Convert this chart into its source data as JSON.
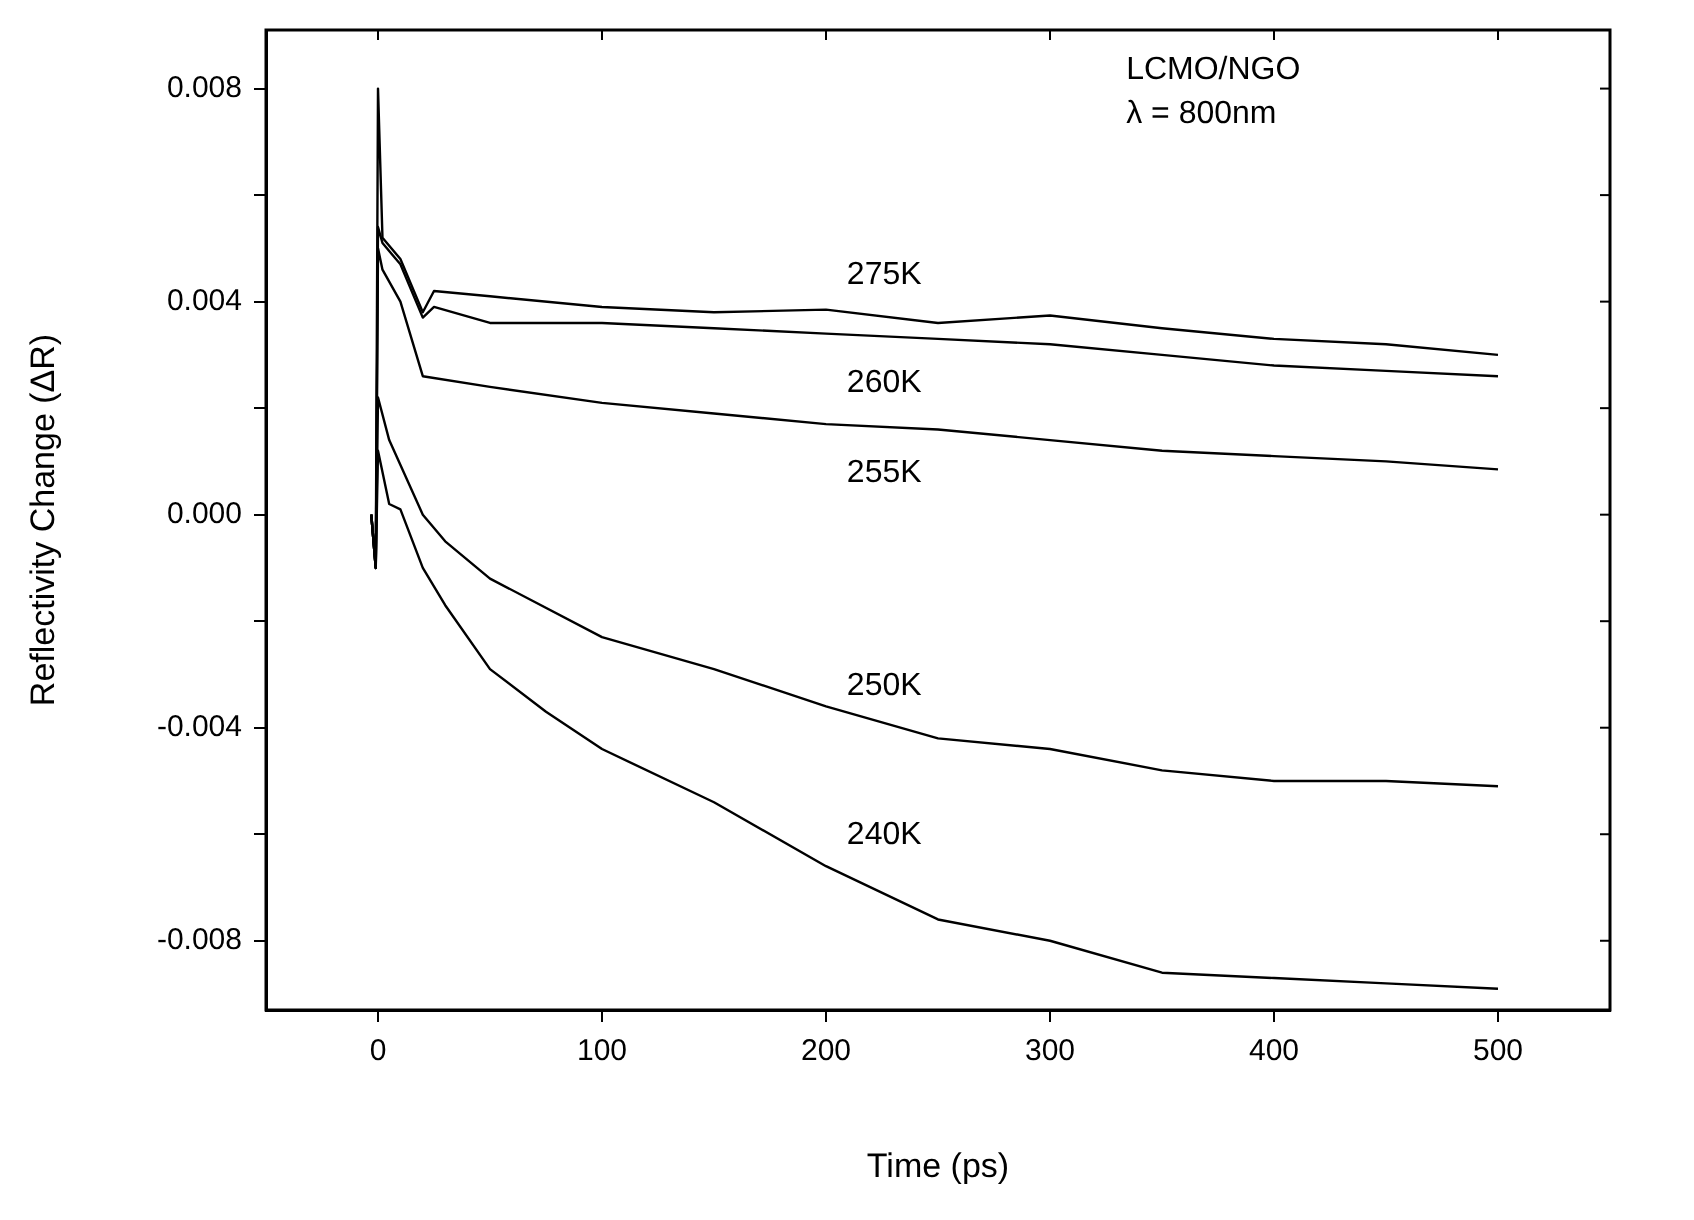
{
  "chart_data": {
    "type": "line",
    "xlabel": "Time (ps)",
    "ylabel": "Reflectivity Change (ΔR)",
    "annotations": [
      "LCMO/NGO",
      "λ = 800nm"
    ],
    "xlim": [
      -50,
      550
    ],
    "xticks": [
      0,
      100,
      200,
      300,
      400,
      500
    ],
    "ylim": [
      -0.0093,
      0.0091
    ],
    "yticks": [
      {
        "value": -0.008,
        "label": "-0.008"
      },
      {
        "value": -0.006,
        "label": null
      },
      {
        "value": -0.004,
        "label": "-0.004"
      },
      {
        "value": -0.002,
        "label": null
      },
      {
        "value": 0,
        "label": "0.000"
      },
      {
        "value": 0.002,
        "label": null
      },
      {
        "value": 0.004,
        "label": "0.004"
      },
      {
        "value": 0.006,
        "label": null
      },
      {
        "value": 0.008,
        "label": "0.008"
      }
    ],
    "grid": false,
    "legend": false,
    "marker": "none",
    "line_style": "solid",
    "series": [
      {
        "name": "275K",
        "color": "#000000",
        "x": [
          -3,
          -1,
          0,
          2,
          10,
          20,
          25,
          50,
          100,
          150,
          200,
          250,
          300,
          350,
          400,
          450,
          500
        ],
        "values": [
          0,
          -0.001,
          0.008,
          0.0052,
          0.0048,
          0.0038,
          0.0042,
          0.0041,
          0.0039,
          0.0038,
          0.00385,
          0.0036,
          0.00374,
          0.0035,
          0.0033,
          0.0032,
          0.003
        ]
      },
      {
        "name": "260K",
        "color": "#000000",
        "x": [
          -3,
          -1,
          0,
          2,
          10,
          20,
          25,
          50,
          100,
          150,
          200,
          250,
          300,
          350,
          400,
          450,
          500
        ],
        "values": [
          0,
          -0.001,
          0.0054,
          0.0051,
          0.0047,
          0.0037,
          0.0039,
          0.0036,
          0.0036,
          0.0035,
          0.0034,
          0.0033,
          0.0032,
          0.003,
          0.0028,
          0.0027,
          0.0026
        ]
      },
      {
        "name": "255K",
        "color": "#000000",
        "x": [
          -3,
          -1,
          0,
          2,
          10,
          20,
          50,
          100,
          150,
          200,
          250,
          300,
          350,
          400,
          450,
          500
        ],
        "values": [
          0,
          -0.001,
          0.005,
          0.0046,
          0.004,
          0.0026,
          0.0024,
          0.0021,
          0.0019,
          0.0017,
          0.0016,
          0.0014,
          0.0012,
          0.0011,
          0.001,
          0.00085
        ]
      },
      {
        "name": "250K",
        "color": "#000000",
        "x": [
          -3,
          -1,
          0,
          5,
          20,
          30,
          50,
          100,
          150,
          200,
          250,
          300,
          350,
          400,
          450,
          500
        ],
        "values": [
          0,
          -0.001,
          0.0022,
          0.0014,
          0,
          -0.0005,
          -0.0012,
          -0.0023,
          -0.0029,
          -0.0036,
          -0.0042,
          -0.0044,
          -0.0048,
          -0.005,
          -0.005,
          -0.0051
        ]
      },
      {
        "name": "240K",
        "color": "#000000",
        "x": [
          -3,
          -1,
          0,
          5,
          10,
          20,
          30,
          50,
          75,
          100,
          150,
          200,
          250,
          300,
          350,
          400,
          450,
          500
        ],
        "values": [
          0,
          -0.001,
          0.0012,
          0.0002,
          0.0001,
          -0.001,
          -0.0017,
          -0.0029,
          -0.0037,
          -0.0044,
          -0.0054,
          -0.0066,
          -0.0076,
          -0.008,
          -0.0086,
          -0.0087,
          -0.0088,
          -0.0089
        ]
      }
    ]
  }
}
